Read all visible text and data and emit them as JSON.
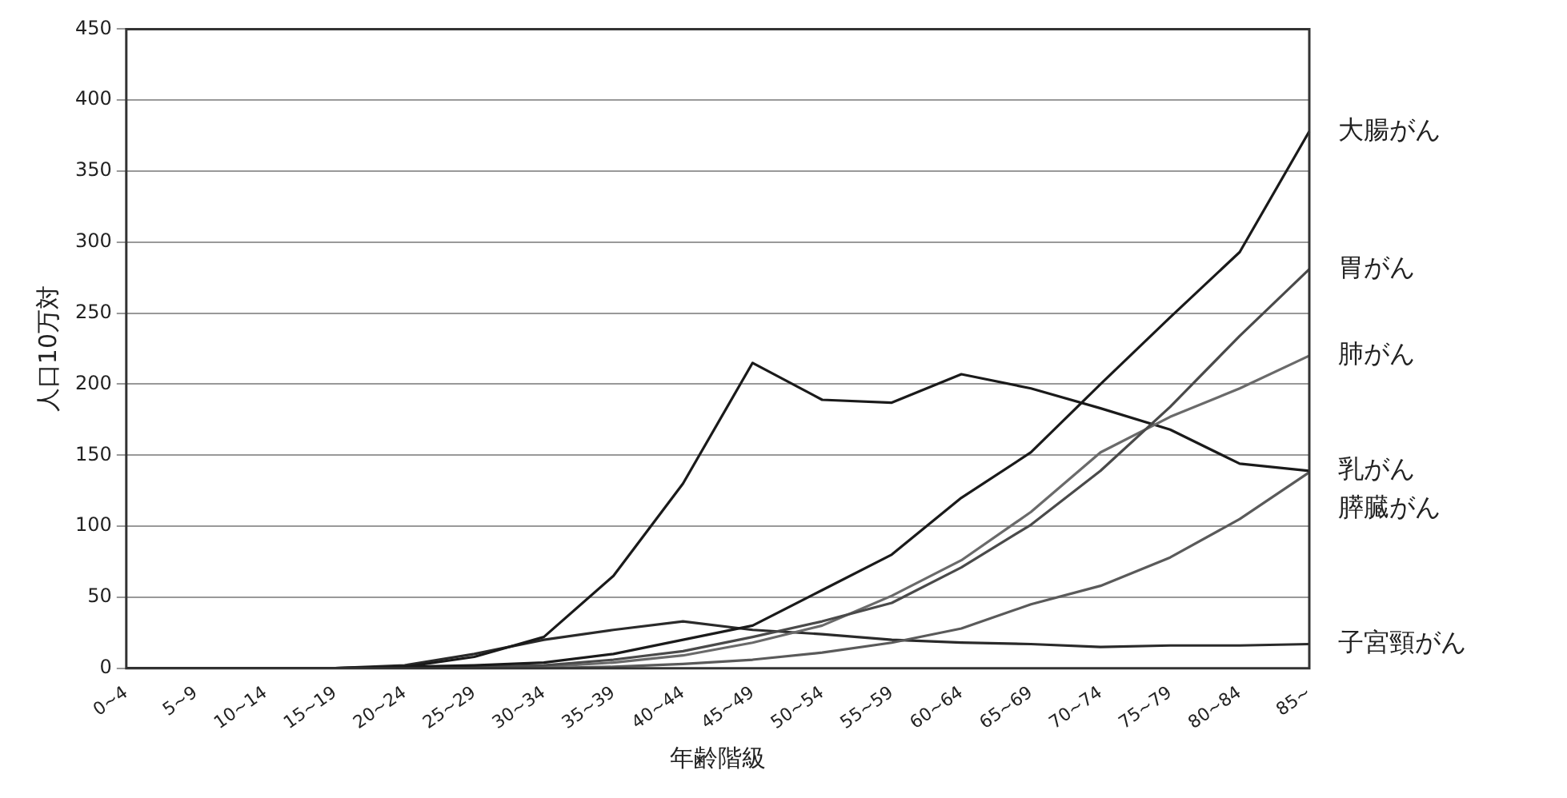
{
  "chart_data": {
    "type": "line",
    "xlabel": "年齢階級",
    "ylabel": "人口10万対",
    "categories": [
      "0~4",
      "5~9",
      "10~14",
      "15~19",
      "20~24",
      "25~29",
      "30~34",
      "35~39",
      "40~44",
      "45~49",
      "50~54",
      "55~59",
      "60~64",
      "65~69",
      "70~74",
      "75~79",
      "80~84",
      "85~"
    ],
    "series": [
      {
        "name": "大腸がん",
        "color": "#1a1a1a",
        "values": [
          0,
          0,
          0,
          0,
          1,
          2,
          4,
          10,
          20,
          30,
          55,
          80,
          120,
          152,
          200,
          247,
          293,
          378
        ]
      },
      {
        "name": "胃がん",
        "color": "#4a4a4a",
        "values": [
          0,
          0,
          0,
          0,
          0,
          1,
          2,
          6,
          12,
          22,
          33,
          46,
          71,
          101,
          139,
          184,
          234,
          281
        ]
      },
      {
        "name": "肺がん",
        "color": "#6a6a6a",
        "values": [
          0,
          0,
          0,
          0,
          0,
          0,
          1,
          4,
          9,
          18,
          30,
          51,
          76,
          110,
          152,
          177,
          197,
          220
        ]
      },
      {
        "name": "乳がん",
        "color": "#1a1a1a",
        "values": [
          0,
          0,
          0,
          0,
          1,
          8,
          22,
          65,
          130,
          215,
          189,
          187,
          207,
          197,
          183,
          168,
          144,
          139
        ]
      },
      {
        "name": "膵臓がん",
        "color": "#5a5a5a",
        "values": [
          0,
          0,
          0,
          0,
          0,
          0,
          0,
          1,
          3,
          6,
          11,
          18,
          28,
          45,
          58,
          78,
          105,
          138
        ]
      },
      {
        "name": "子宮頸がん",
        "color": "#2a2a2a",
        "values": [
          0,
          0,
          0,
          0,
          2,
          10,
          20,
          27,
          33,
          27,
          24,
          20,
          18,
          17,
          15,
          16,
          16,
          17
        ]
      }
    ],
    "ylim": [
      0,
      450
    ],
    "yticks": [
      0,
      50,
      100,
      150,
      200,
      250,
      300,
      350,
      400,
      450
    ],
    "grid": "y",
    "legend": false,
    "marker": "none",
    "line_style": "solid"
  }
}
